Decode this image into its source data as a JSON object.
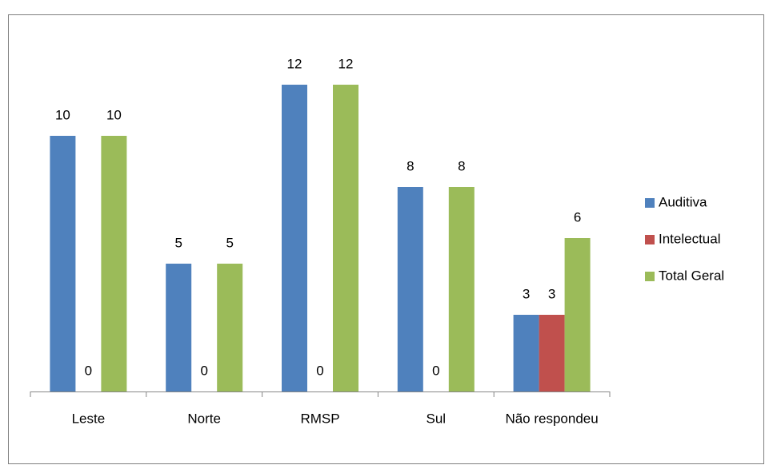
{
  "chart_data": {
    "type": "bar",
    "categories": [
      "Leste",
      "Norte",
      "RMSP",
      "Sul",
      "Não respondeu"
    ],
    "series": [
      {
        "name": "Auditiva",
        "color": "#4f81bd",
        "values": [
          10,
          5,
          12,
          8,
          3
        ]
      },
      {
        "name": "Intelectual",
        "color": "#c0504d",
        "values": [
          0,
          0,
          0,
          0,
          3
        ]
      },
      {
        "name": "Total Geral",
        "color": "#9bbb59",
        "values": [
          10,
          5,
          12,
          8,
          6
        ]
      }
    ],
    "ylim": [
      0,
      12
    ],
    "legend": "right"
  }
}
